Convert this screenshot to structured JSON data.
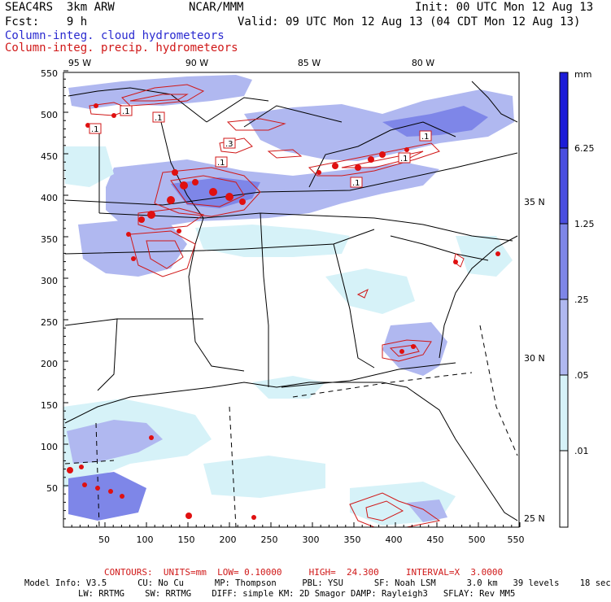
{
  "header": {
    "left_line1": "SEAC4RS  3km ARW",
    "left_line2": "Fcst:    9 h",
    "center": "NCAR/MMM",
    "init": "Init: 00 UTC Mon 12 Aug 13",
    "valid": "Valid: 09 UTC Mon 12 Aug 13 (04 CDT Mon 12 Aug 13)",
    "field1": "Column-integ. cloud hydrometeors",
    "field2": "Column-integ. precip. hydrometeors"
  },
  "colors": {
    "field1": "#2a2ad0",
    "field2": "#d01818",
    "bar_level_0": "#ffffff",
    "bar_level_1": "#d6f2f8",
    "bar_level_2": "#b0b8f0",
    "bar_level_3": "#7e86e8",
    "bar_level_4": "#4a4ee0",
    "bar_level_5": "#1c1cd8"
  },
  "map": {
    "lon_labels": [
      "95 W",
      "90 W",
      "85 W",
      "80 W"
    ],
    "lat_labels": [
      "35 N",
      "30 N",
      "25 N"
    ],
    "x_ticks": [
      "50",
      "100",
      "150",
      "200",
      "250",
      "300",
      "350",
      "400",
      "450",
      "500",
      "550"
    ],
    "y_ticks": [
      "550",
      "500",
      "450",
      "400",
      "350",
      "300",
      "250",
      "200",
      "150",
      "100",
      "50"
    ],
    "contour_labels": [
      ".1",
      ".1",
      ".1",
      ".3",
      ".1",
      ".1",
      ".1",
      ".1"
    ]
  },
  "colorbar": {
    "unit": "mm",
    "levels": [
      "6.25",
      "1.25",
      ".25",
      ".05",
      ".01"
    ]
  },
  "footer": {
    "contours": "CONTOURS:  UNITS=mm  LOW= 0.10000     HIGH=  24.300     INTERVAL=X  3.0000",
    "info1": "Model Info: V3.5      CU: No Cu      MP: Thompson     PBL: YSU      SF: Noah LSM      3.0 km   39 levels    18 sec",
    "info2": "LW: RRTMG    SW: RRTMG    DIFF: simple KM: 2D Smagor DAMP: Rayleigh3   SFLAY: Rev MM5"
  }
}
